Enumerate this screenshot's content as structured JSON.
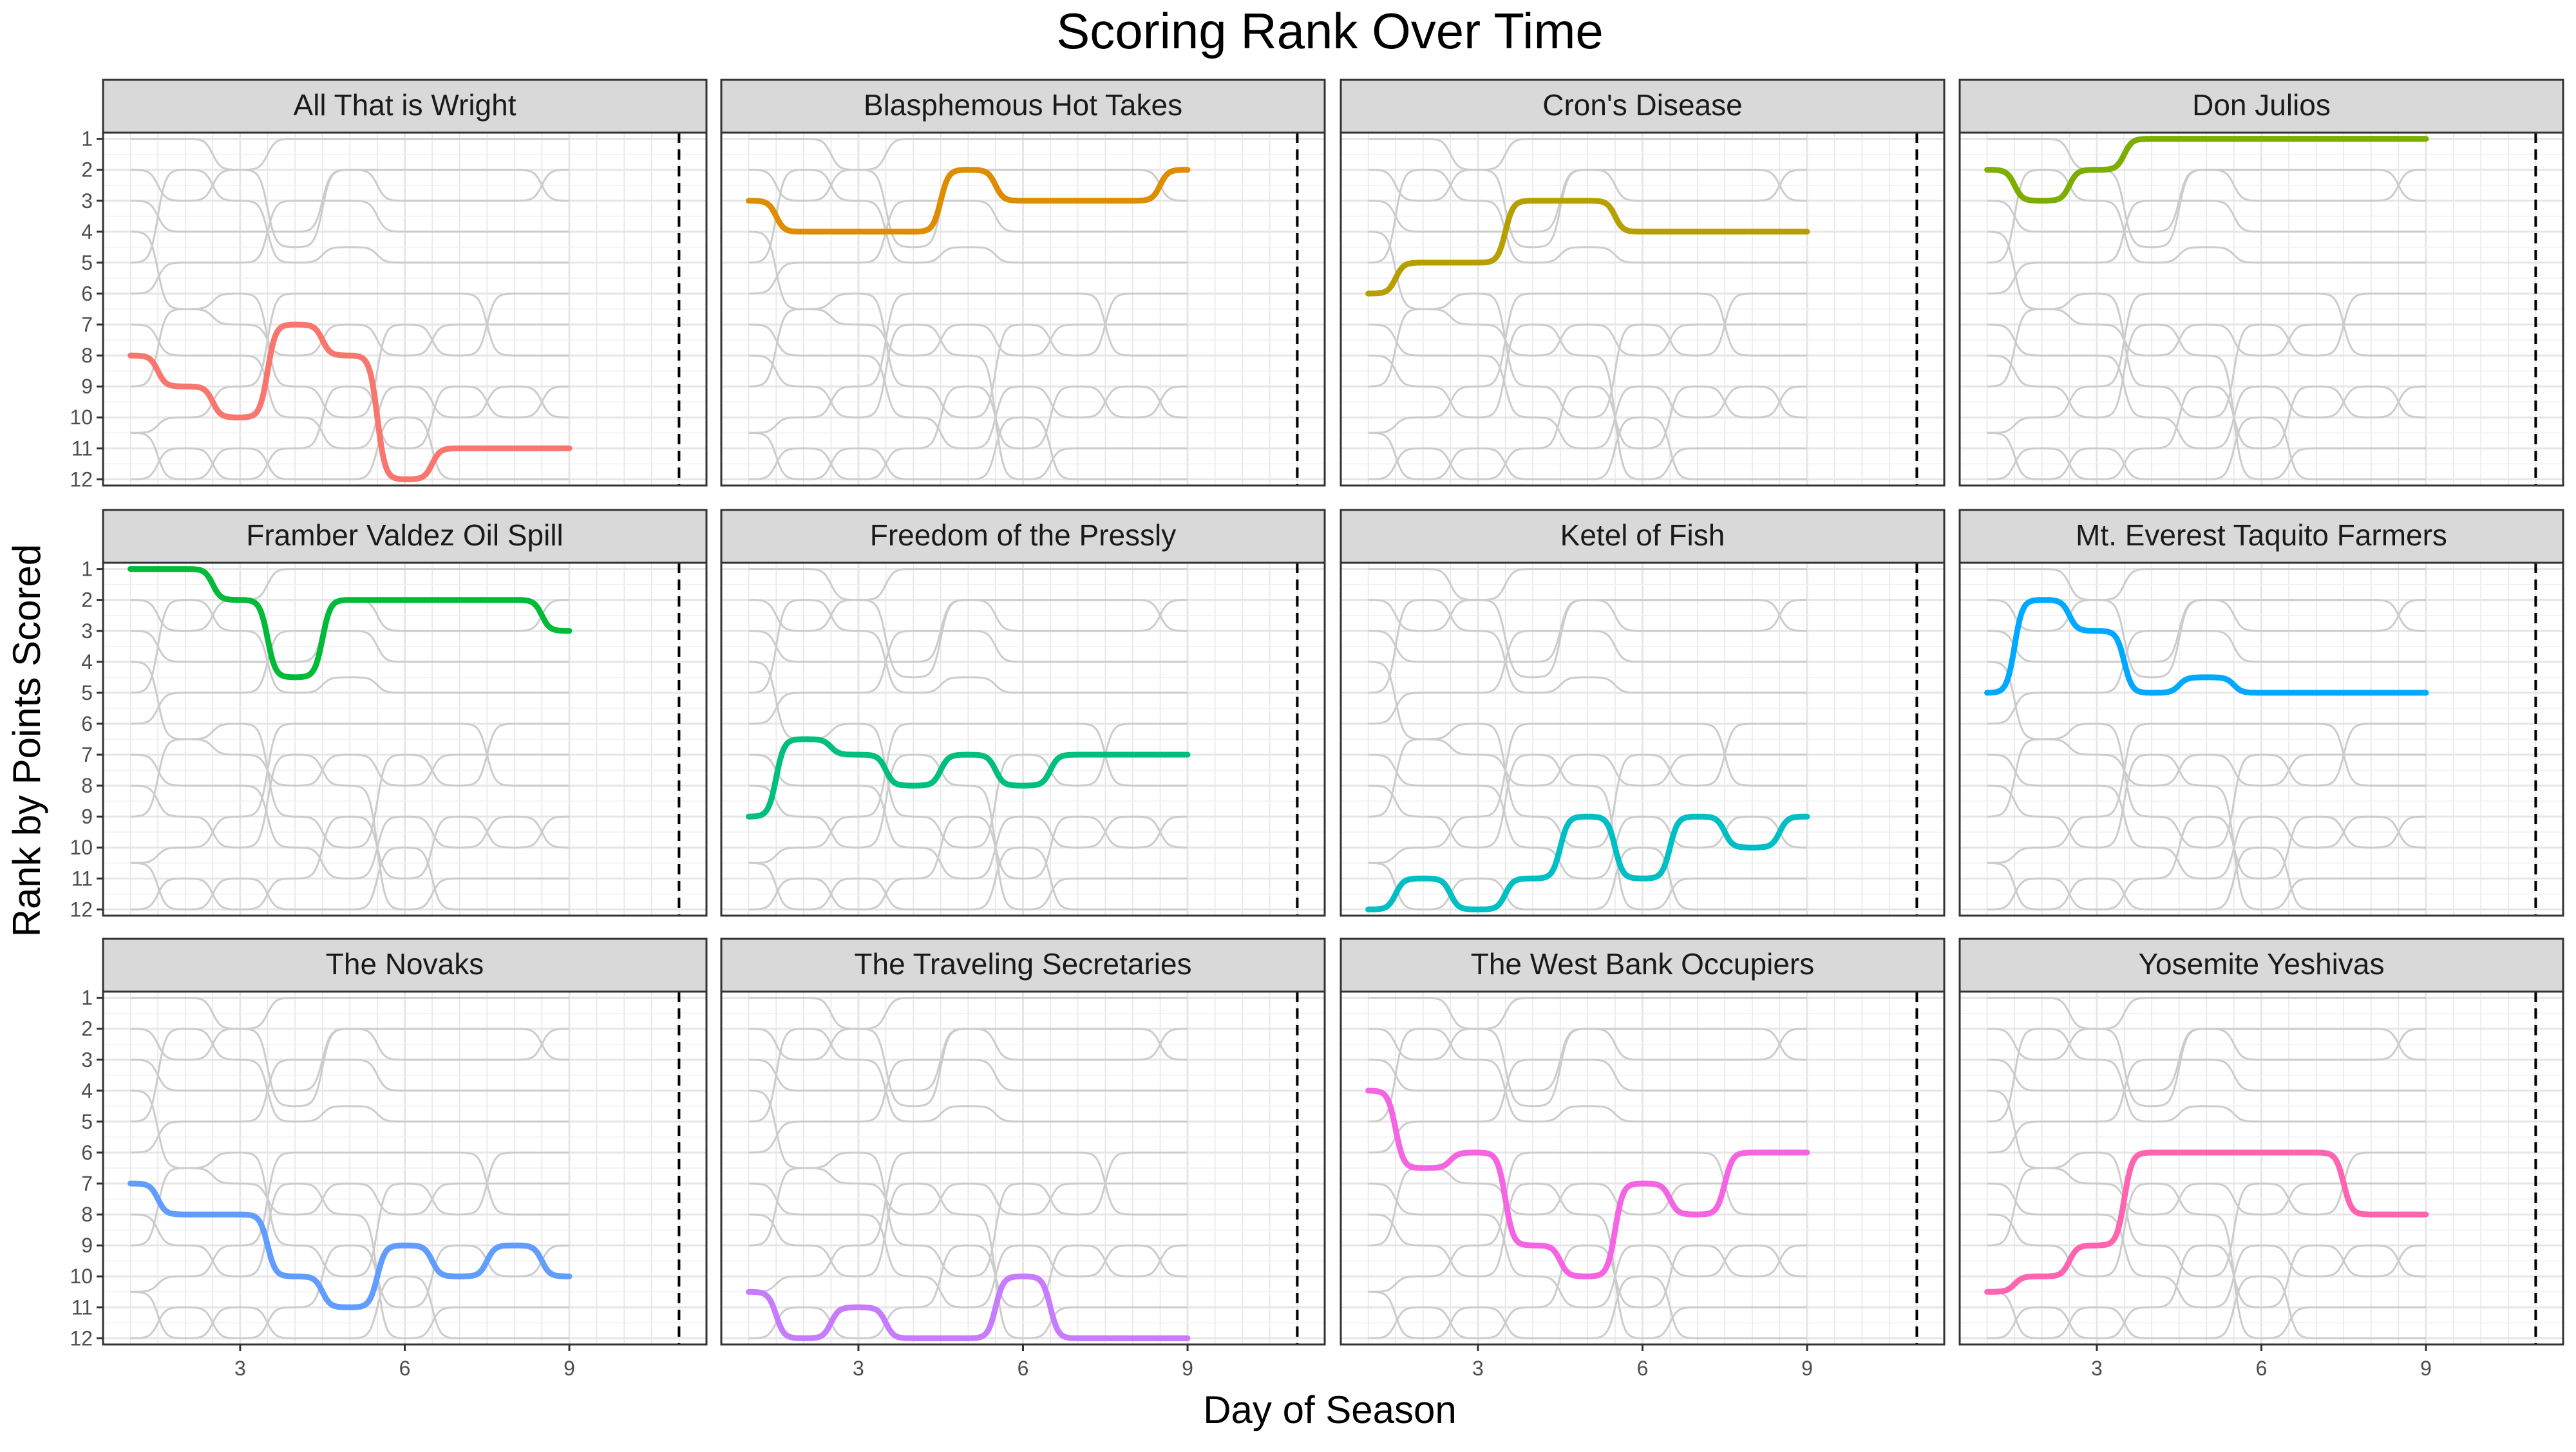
{
  "chart_data": {
    "type": "line",
    "title": "Scoring Rank Over Time",
    "xlabel": "Day of Season",
    "ylabel": "Rank by Points Scored",
    "x": [
      1,
      2,
      3,
      4,
      5,
      6,
      7,
      8,
      9
    ],
    "xlim": [
      0.5,
      11.5
    ],
    "x_ticks": [
      3,
      6,
      9
    ],
    "y_ticks": [
      1,
      2,
      3,
      4,
      5,
      6,
      7,
      8,
      9,
      10,
      11,
      12
    ],
    "y_reversed": true,
    "ylim": [
      12.2,
      0.8
    ],
    "reference_line_x": 11,
    "grid": true,
    "legend": "none",
    "series": [
      {
        "name": "All That is Wright",
        "color": "#F8766D",
        "values": [
          8,
          9,
          10,
          7,
          8,
          12,
          11,
          11,
          11
        ]
      },
      {
        "name": "Blasphemous Hot Takes",
        "color": "#DE8C00",
        "values": [
          3,
          4,
          4,
          4,
          2,
          3,
          3,
          3,
          2
        ]
      },
      {
        "name": "Cron's Disease",
        "color": "#B79F00",
        "values": [
          6,
          5,
          5,
          3,
          3,
          4,
          4,
          4,
          4
        ]
      },
      {
        "name": "Don Julios",
        "color": "#7CAE00",
        "values": [
          2,
          3,
          2,
          1,
          1,
          1,
          1,
          1,
          1
        ]
      },
      {
        "name": "Framber Valdez Oil Spill",
        "color": "#00BA38",
        "values": [
          1,
          1,
          2,
          4.5,
          2,
          2,
          2,
          2,
          3
        ]
      },
      {
        "name": "Freedom of the Pressly",
        "color": "#00BF7D",
        "values": [
          9,
          6.5,
          7,
          8,
          7,
          8,
          7,
          7,
          7
        ]
      },
      {
        "name": "Ketel of Fish",
        "color": "#00BFC4",
        "values": [
          12,
          11,
          12,
          11,
          9,
          11,
          9,
          10,
          9
        ]
      },
      {
        "name": "Mt. Everest Taquito Farmers",
        "color": "#00A9FF",
        "values": [
          5,
          2,
          3,
          5,
          4.5,
          5,
          5,
          5,
          5
        ]
      },
      {
        "name": "The Novaks",
        "color": "#619CFF",
        "values": [
          7,
          8,
          8,
          10,
          11,
          9,
          10,
          9,
          10
        ]
      },
      {
        "name": "The Traveling Secretaries",
        "color": "#C77CFF",
        "values": [
          10.5,
          12,
          11,
          12,
          12,
          10,
          12,
          12,
          12
        ]
      },
      {
        "name": "The West Bank Occupiers",
        "color": "#F564E3",
        "values": [
          4,
          6.5,
          6,
          9,
          10,
          7,
          8,
          6,
          6
        ]
      },
      {
        "name": "Yosemite Yeshivas",
        "color": "#FF64B0",
        "values": [
          10.5,
          10,
          9,
          6,
          6,
          6,
          6,
          8,
          8
        ]
      }
    ]
  }
}
